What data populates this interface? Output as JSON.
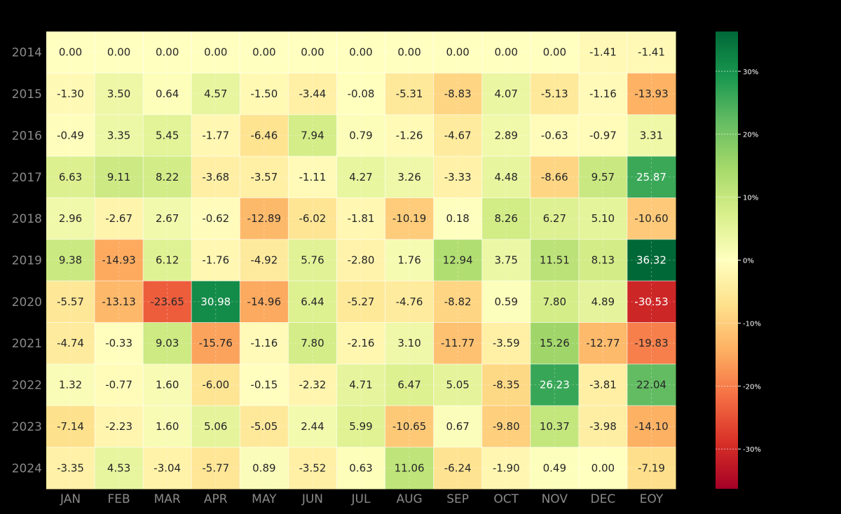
{
  "chart_data": {
    "type": "heatmap",
    "title": "",
    "xlabel": "",
    "ylabel": "",
    "columns": [
      "JAN",
      "FEB",
      "MAR",
      "APR",
      "MAY",
      "JUN",
      "JUL",
      "AUG",
      "SEP",
      "OCT",
      "NOV",
      "DEC",
      "EOY"
    ],
    "rows": [
      "2014",
      "2015",
      "2016",
      "2017",
      "2018",
      "2019",
      "2020",
      "2021",
      "2022",
      "2023",
      "2024"
    ],
    "values": [
      [
        0.0,
        0.0,
        0.0,
        0.0,
        0.0,
        0.0,
        0.0,
        0.0,
        0.0,
        0.0,
        0.0,
        -1.41,
        -1.41
      ],
      [
        -1.3,
        3.5,
        0.64,
        4.57,
        -1.5,
        -3.44,
        -0.08,
        -5.31,
        -8.83,
        4.07,
        -5.13,
        -1.16,
        -13.93
      ],
      [
        -0.49,
        3.35,
        5.45,
        -1.77,
        -6.46,
        7.94,
        0.79,
        -1.26,
        -4.67,
        2.89,
        -0.63,
        -0.97,
        3.31
      ],
      [
        6.63,
        9.11,
        8.22,
        -3.68,
        -3.57,
        -1.11,
        4.27,
        3.26,
        -3.33,
        4.48,
        -8.66,
        9.57,
        25.87
      ],
      [
        2.96,
        -2.67,
        2.67,
        -0.62,
        -12.89,
        -6.02,
        -1.81,
        -10.19,
        0.18,
        8.26,
        6.27,
        5.1,
        -10.6
      ],
      [
        9.38,
        -14.93,
        6.12,
        -1.76,
        -4.92,
        5.76,
        -2.8,
        1.76,
        12.94,
        3.75,
        11.51,
        8.13,
        36.32
      ],
      [
        -5.57,
        -13.13,
        -23.65,
        30.98,
        -14.96,
        6.44,
        -5.27,
        -4.76,
        -8.82,
        0.59,
        7.8,
        4.89,
        -30.53
      ],
      [
        -4.74,
        -0.33,
        9.03,
        -15.76,
        -1.16,
        7.8,
        -2.16,
        3.1,
        -11.77,
        -3.59,
        15.26,
        -12.77,
        -19.83
      ],
      [
        1.32,
        -0.77,
        1.6,
        -6.0,
        -0.15,
        -2.32,
        4.71,
        6.47,
        5.05,
        -8.35,
        26.23,
        -3.81,
        22.04
      ],
      [
        -7.14,
        -2.23,
        1.6,
        5.06,
        -5.05,
        2.44,
        5.99,
        -10.65,
        0.67,
        -9.8,
        10.37,
        -3.98,
        -14.1
      ],
      [
        -3.35,
        4.53,
        -3.04,
        -5.77,
        0.89,
        -3.52,
        0.63,
        11.06,
        -6.24,
        -1.9,
        0.49,
        0.0,
        -7.19
      ]
    ],
    "value_format": "0.00",
    "colormap": "RdYlGn",
    "vmin": -36.32,
    "vmax": 36.32,
    "colorbar": {
      "ticks": [
        30,
        20,
        10,
        0,
        -10,
        -20,
        -30
      ],
      "tick_labels": [
        "30%",
        "20%",
        "10%",
        "0%",
        "-10%",
        "-20%",
        "-30%"
      ]
    },
    "grid": true,
    "legend": "colorbar-right"
  }
}
